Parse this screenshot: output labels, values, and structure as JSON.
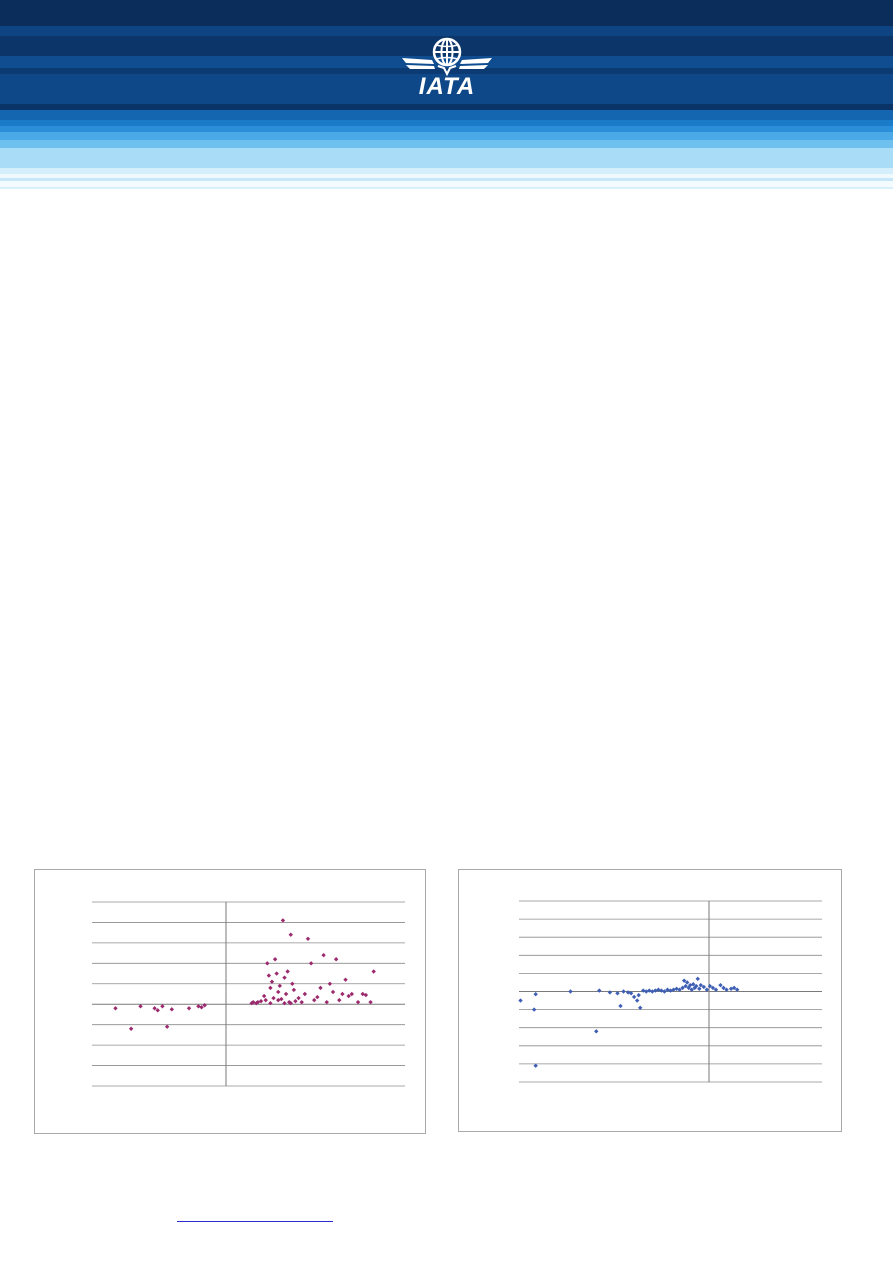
{
  "colors": {
    "header_dark": "#0b2d5c",
    "header_mid": "#0d4a8c",
    "header_light": "#4aa9e6",
    "header_pale": "#a9dcf6",
    "logo": "#ffffff",
    "series_left": "#9b2a6e",
    "series_right": "#3f5fb5",
    "link": "#2b2bd6"
  },
  "header": {
    "logo_text": "IATA"
  },
  "chart_data": [
    {
      "type": "scatter",
      "title": "",
      "xlabel": "",
      "ylabel": "",
      "xlim": [
        -1,
        1
      ],
      "ylim": [
        -4,
        5
      ],
      "grid": true,
      "series": [
        {
          "points": [
            [
              -0.85,
              -0.2
            ],
            [
              -0.75,
              -1.2
            ],
            [
              -0.69,
              -0.1
            ],
            [
              -0.6,
              -0.2
            ],
            [
              -0.58,
              -0.3
            ],
            [
              -0.55,
              -0.1
            ],
            [
              -0.52,
              -1.1
            ],
            [
              -0.49,
              -0.25
            ],
            [
              -0.38,
              -0.2
            ],
            [
              -0.32,
              -0.1
            ],
            [
              -0.3,
              -0.15
            ],
            [
              -0.28,
              -0.05
            ],
            [
              0.02,
              0.05
            ],
            [
              0.03,
              0.1
            ],
            [
              0.05,
              0.05
            ],
            [
              0.06,
              0.1
            ],
            [
              0.08,
              0.15
            ],
            [
              0.1,
              0.4
            ],
            [
              0.11,
              0.2
            ],
            [
              0.12,
              2.0
            ],
            [
              0.13,
              1.4
            ],
            [
              0.14,
              0.8
            ],
            [
              0.15,
              1.1
            ],
            [
              0.16,
              0.3
            ],
            [
              0.17,
              2.2
            ],
            [
              0.18,
              1.5
            ],
            [
              0.19,
              0.6
            ],
            [
              0.2,
              0.9
            ],
            [
              0.21,
              0.25
            ],
            [
              0.22,
              4.1
            ],
            [
              0.23,
              1.3
            ],
            [
              0.24,
              0.5
            ],
            [
              0.25,
              1.6
            ],
            [
              0.26,
              0.1
            ],
            [
              0.27,
              3.4
            ],
            [
              0.28,
              1.0
            ],
            [
              0.29,
              0.7
            ],
            [
              0.3,
              0.15
            ],
            [
              0.32,
              0.3
            ],
            [
              0.34,
              0.1
            ],
            [
              0.36,
              0.5
            ],
            [
              0.38,
              3.2
            ],
            [
              0.4,
              2.0
            ],
            [
              0.42,
              0.2
            ],
            [
              0.44,
              0.35
            ],
            [
              0.46,
              0.8
            ],
            [
              0.48,
              2.4
            ],
            [
              0.5,
              0.1
            ],
            [
              0.52,
              1.0
            ],
            [
              0.54,
              0.6
            ],
            [
              0.56,
              2.2
            ],
            [
              0.58,
              0.2
            ],
            [
              0.6,
              0.5
            ],
            [
              0.62,
              1.2
            ],
            [
              0.64,
              0.4
            ],
            [
              0.66,
              0.5
            ],
            [
              0.7,
              0.1
            ],
            [
              0.73,
              0.5
            ],
            [
              0.75,
              0.45
            ],
            [
              0.78,
              0.1
            ],
            [
              0.8,
              1.6
            ],
            [
              0.14,
              0.05
            ],
            [
              0.19,
              0.2
            ],
            [
              0.23,
              0.05
            ],
            [
              0.27,
              0.05
            ]
          ]
        }
      ]
    },
    {
      "type": "scatter",
      "title": "",
      "xlabel": "",
      "ylabel": "",
      "xlim": [
        -1,
        1
      ],
      "ylim": [
        -5,
        5
      ],
      "grid": true,
      "series": [
        {
          "points": [
            [
              -0.99,
              -0.5
            ],
            [
              -0.9,
              -1.0
            ],
            [
              -0.89,
              -0.15
            ],
            [
              -0.89,
              -4.1
            ],
            [
              -0.66,
              0.0
            ],
            [
              -0.49,
              -2.2
            ],
            [
              -0.47,
              0.05
            ],
            [
              -0.4,
              -0.05
            ],
            [
              -0.35,
              -0.1
            ],
            [
              -0.33,
              -0.8
            ],
            [
              -0.31,
              0.0
            ],
            [
              -0.28,
              -0.05
            ],
            [
              -0.26,
              -0.1
            ],
            [
              -0.24,
              -0.3
            ],
            [
              -0.22,
              -0.5
            ],
            [
              -0.21,
              -0.2
            ],
            [
              -0.2,
              -0.9
            ],
            [
              -0.18,
              0.05
            ],
            [
              -0.16,
              0.0
            ],
            [
              -0.14,
              0.05
            ],
            [
              -0.12,
              0.0
            ],
            [
              -0.1,
              0.05
            ],
            [
              -0.08,
              0.1
            ],
            [
              -0.06,
              0.05
            ],
            [
              -0.04,
              0.0
            ],
            [
              -0.02,
              0.1
            ],
            [
              0.0,
              0.05
            ],
            [
              0.02,
              0.1
            ],
            [
              0.04,
              0.15
            ],
            [
              0.06,
              0.1
            ],
            [
              0.08,
              0.2
            ],
            [
              0.09,
              0.6
            ],
            [
              0.1,
              0.3
            ],
            [
              0.11,
              0.5
            ],
            [
              0.12,
              0.2
            ],
            [
              0.13,
              0.35
            ],
            [
              0.14,
              0.1
            ],
            [
              0.15,
              0.4
            ],
            [
              0.16,
              0.2
            ],
            [
              0.17,
              0.3
            ],
            [
              0.18,
              0.7
            ],
            [
              0.19,
              0.15
            ],
            [
              0.2,
              0.35
            ],
            [
              0.22,
              0.25
            ],
            [
              0.24,
              0.1
            ],
            [
              0.26,
              0.3
            ],
            [
              0.28,
              0.2
            ],
            [
              0.3,
              0.1
            ],
            [
              0.33,
              0.35
            ],
            [
              0.35,
              0.2
            ],
            [
              0.37,
              0.1
            ],
            [
              0.4,
              0.15
            ],
            [
              0.42,
              0.2
            ],
            [
              0.44,
              0.1
            ]
          ]
        }
      ]
    }
  ]
}
